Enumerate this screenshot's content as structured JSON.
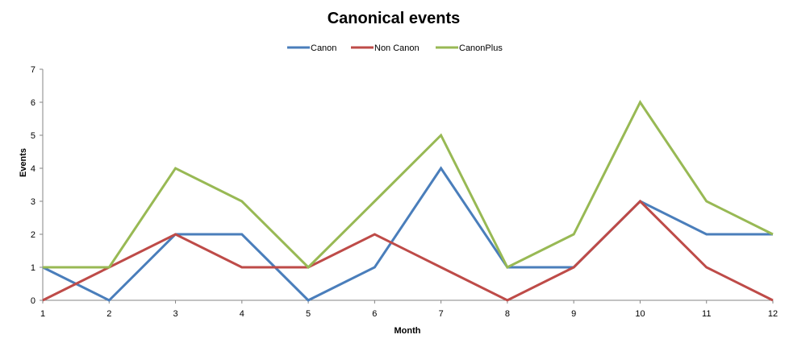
{
  "chart_data": {
    "type": "line",
    "title": "Canonical events",
    "xlabel": "Month",
    "ylabel": "Events",
    "x": [
      1,
      2,
      3,
      4,
      5,
      6,
      7,
      8,
      9,
      10,
      11,
      12
    ],
    "ylim": [
      0,
      7
    ],
    "yticks": [
      0,
      1,
      2,
      3,
      4,
      5,
      6,
      7
    ],
    "grid": false,
    "legend_position": "top",
    "series": [
      {
        "name": "Canon",
        "color": "#4A7EBB",
        "values": [
          1,
          0,
          2,
          2,
          0,
          1,
          4,
          1,
          1,
          3,
          2,
          2
        ]
      },
      {
        "name": "Non Canon",
        "color": "#BE4B48",
        "values": [
          0,
          1,
          2,
          1,
          1,
          2,
          1,
          0,
          1,
          3,
          1,
          0
        ]
      },
      {
        "name": "CanonPlus",
        "color": "#98B954",
        "values": [
          1,
          1,
          4,
          3,
          1,
          3,
          5,
          1,
          2,
          6,
          3,
          2
        ]
      }
    ]
  }
}
